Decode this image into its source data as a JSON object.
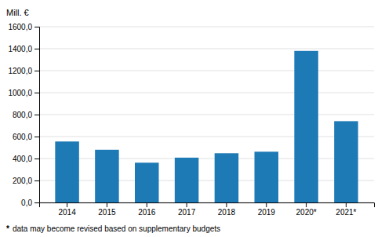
{
  "chart_data": {
    "type": "bar",
    "ylabel": "Mill. €",
    "categories": [
      "2014",
      "2015",
      "2016",
      "2017",
      "2018",
      "2019",
      "2020*",
      "2021*"
    ],
    "values": [
      555,
      480,
      362,
      408,
      448,
      462,
      1380,
      740
    ],
    "color": "#1e7ab5",
    "ylim": [
      0,
      1600
    ],
    "yticks": [
      {
        "value": 0,
        "label": "0,0"
      },
      {
        "value": 200,
        "label": "200,0"
      },
      {
        "value": 400,
        "label": "400,0"
      },
      {
        "value": 600,
        "label": "600,0"
      },
      {
        "value": 800,
        "label": "800,0"
      },
      {
        "value": 1000,
        "label": "1000,0"
      },
      {
        "value": 1200,
        "label": "1200,0"
      },
      {
        "value": 1400,
        "label": "1400,0"
      },
      {
        "value": 1600,
        "label": "1600,0"
      }
    ],
    "grid": true,
    "annotations": [
      "*",
      "data may become revised based on supplementary budgets"
    ]
  }
}
